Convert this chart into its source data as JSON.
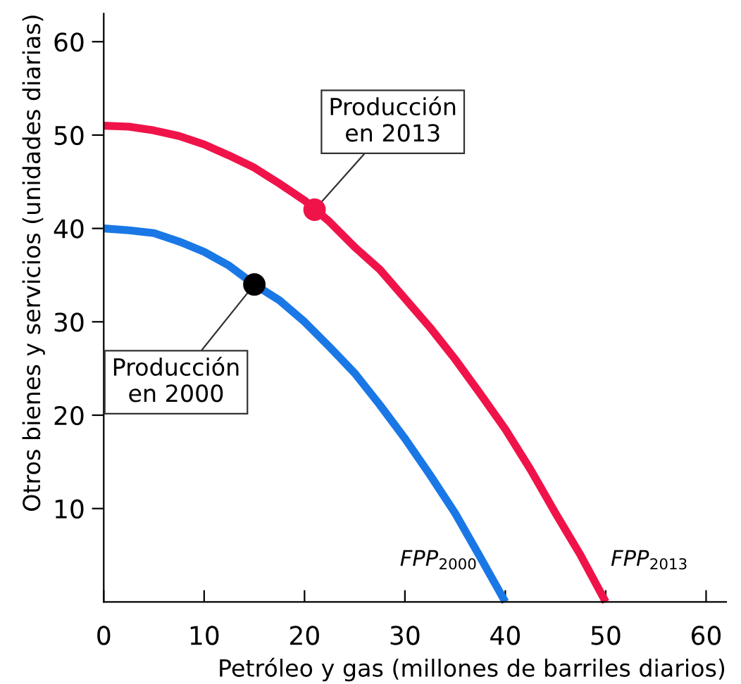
{
  "chart_data": {
    "type": "line",
    "xlabel": "Petróleo y gas (millones de barriles diarios)",
    "ylabel": "Otros bienes y servicios (unidades diarias)",
    "series": [
      {
        "name": "FPP$_{2000}$",
        "color": "#1a78e6",
        "marker": "none",
        "x": [
          0,
          2.5,
          5,
          7.5,
          10,
          12.5,
          15,
          17.5,
          20,
          22.5,
          25,
          27.5,
          30,
          32.5,
          35,
          37.5,
          40
        ],
        "values": [
          40,
          39.8,
          39.5,
          38.6,
          37.5,
          36,
          34,
          32.3,
          30,
          27.3,
          24.5,
          21.1,
          17.5,
          13.6,
          9.5,
          4.8,
          0
        ]
      },
      {
        "name": "FPP$_{2013}$",
        "color": "#f0134a",
        "marker": "none",
        "x": [
          0,
          2.5,
          5,
          7.5,
          10,
          12.5,
          15,
          17.5,
          20,
          22.5,
          25,
          27.5,
          30,
          32.5,
          35,
          37.5,
          40,
          42.5,
          45,
          47.5,
          50
        ],
        "values": [
          51,
          50.9,
          50.5,
          49.9,
          49,
          47.8,
          46.5,
          44.8,
          43,
          40.7,
          38,
          35.6,
          32.5,
          29.4,
          26,
          22.3,
          18.5,
          14.2,
          9.5,
          5,
          0
        ]
      },
      {
        "type": "scatter",
        "marker": "circle",
        "color": "#000000",
        "x": [
          15
        ],
        "values": [
          34
        ]
      },
      {
        "type": "scatter",
        "marker": "circle",
        "color": "#f0134a",
        "x": [
          21
        ],
        "values": [
          42
        ]
      }
    ],
    "annotations": [
      {
        "text": "Producción\nen 2000",
        "x": 15,
        "y": 34
      },
      {
        "text": "Producción\nen 2013",
        "x": 21,
        "y": 42
      }
    ],
    "xlim": [
      0,
      62
    ],
    "ylim": [
      0,
      63
    ],
    "xticks": [
      0,
      10,
      20,
      30,
      40,
      50,
      60
    ],
    "yticks": [
      10,
      20,
      30,
      40,
      50,
      60
    ],
    "grid": false,
    "legend": false,
    "line_style": "solid"
  }
}
